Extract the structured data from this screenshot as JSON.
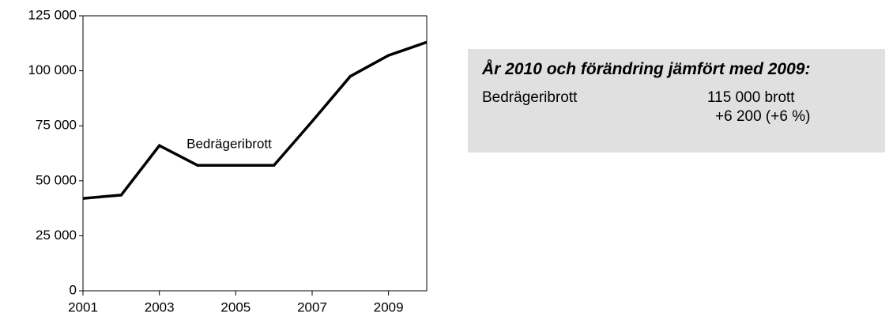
{
  "chart_data": {
    "type": "line",
    "x": [
      2001,
      2002,
      2003,
      2004,
      2005,
      2006,
      2007,
      2008,
      2009,
      2010
    ],
    "values": [
      42000,
      43500,
      66000,
      57000,
      57000,
      57000,
      77000,
      97500,
      107000,
      113000
    ],
    "color": "#000000",
    "annotation": "Bedrägeribrott",
    "xlim": [
      2001,
      2010
    ],
    "xticks": [
      2001,
      2003,
      2005,
      2007,
      2009
    ],
    "ylim": [
      0,
      125000
    ],
    "yticks": [
      {
        "value": 0,
        "label": "0"
      },
      {
        "value": 25000,
        "label": "25 000"
      },
      {
        "value": 50000,
        "label": "50 000"
      },
      {
        "value": 75000,
        "label": "75 000"
      },
      {
        "value": 100000,
        "label": "100 000"
      },
      {
        "value": 125000,
        "label": "125 000"
      }
    ],
    "grid": false
  },
  "info_box": {
    "title": "År 2010 och förändring jämfört med 2009:",
    "label": "Bedrägeribrott",
    "count": "115 000 brott",
    "change": "+6 200 (+6 %)"
  }
}
